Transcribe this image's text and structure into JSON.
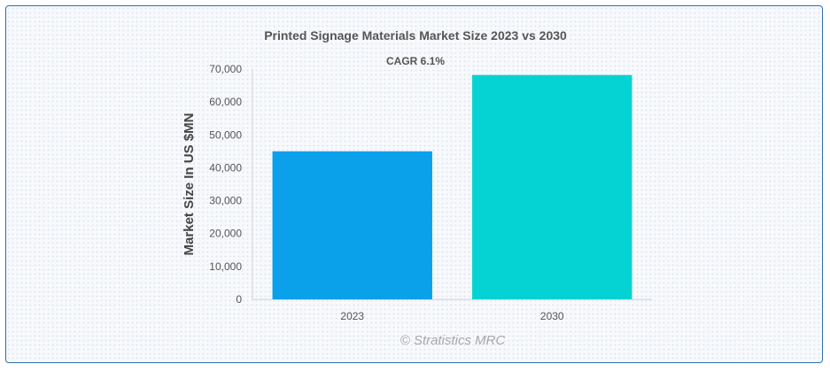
{
  "chart_data": {
    "type": "bar",
    "title": "Printed Signage Materials Market Size 2023 vs 2030",
    "subtitle": "CAGR 6.1%",
    "xlabel": "",
    "ylabel": "Market Size In US $MN",
    "categories": [
      "2023",
      "2030"
    ],
    "values": [
      45000,
      68200
    ],
    "colors": [
      "#0aa0ea",
      "#05d3d3"
    ],
    "ylim": [
      0,
      70000
    ],
    "yticks": [
      0,
      10000,
      20000,
      30000,
      40000,
      50000,
      60000,
      70000
    ],
    "ytick_labels": [
      "0",
      "10,000",
      "20,000",
      "30,000",
      "40,000",
      "50,000",
      "60,000",
      "70,000"
    ],
    "grid": false,
    "legend": "none"
  },
  "credit": "© Stratistics MRC"
}
